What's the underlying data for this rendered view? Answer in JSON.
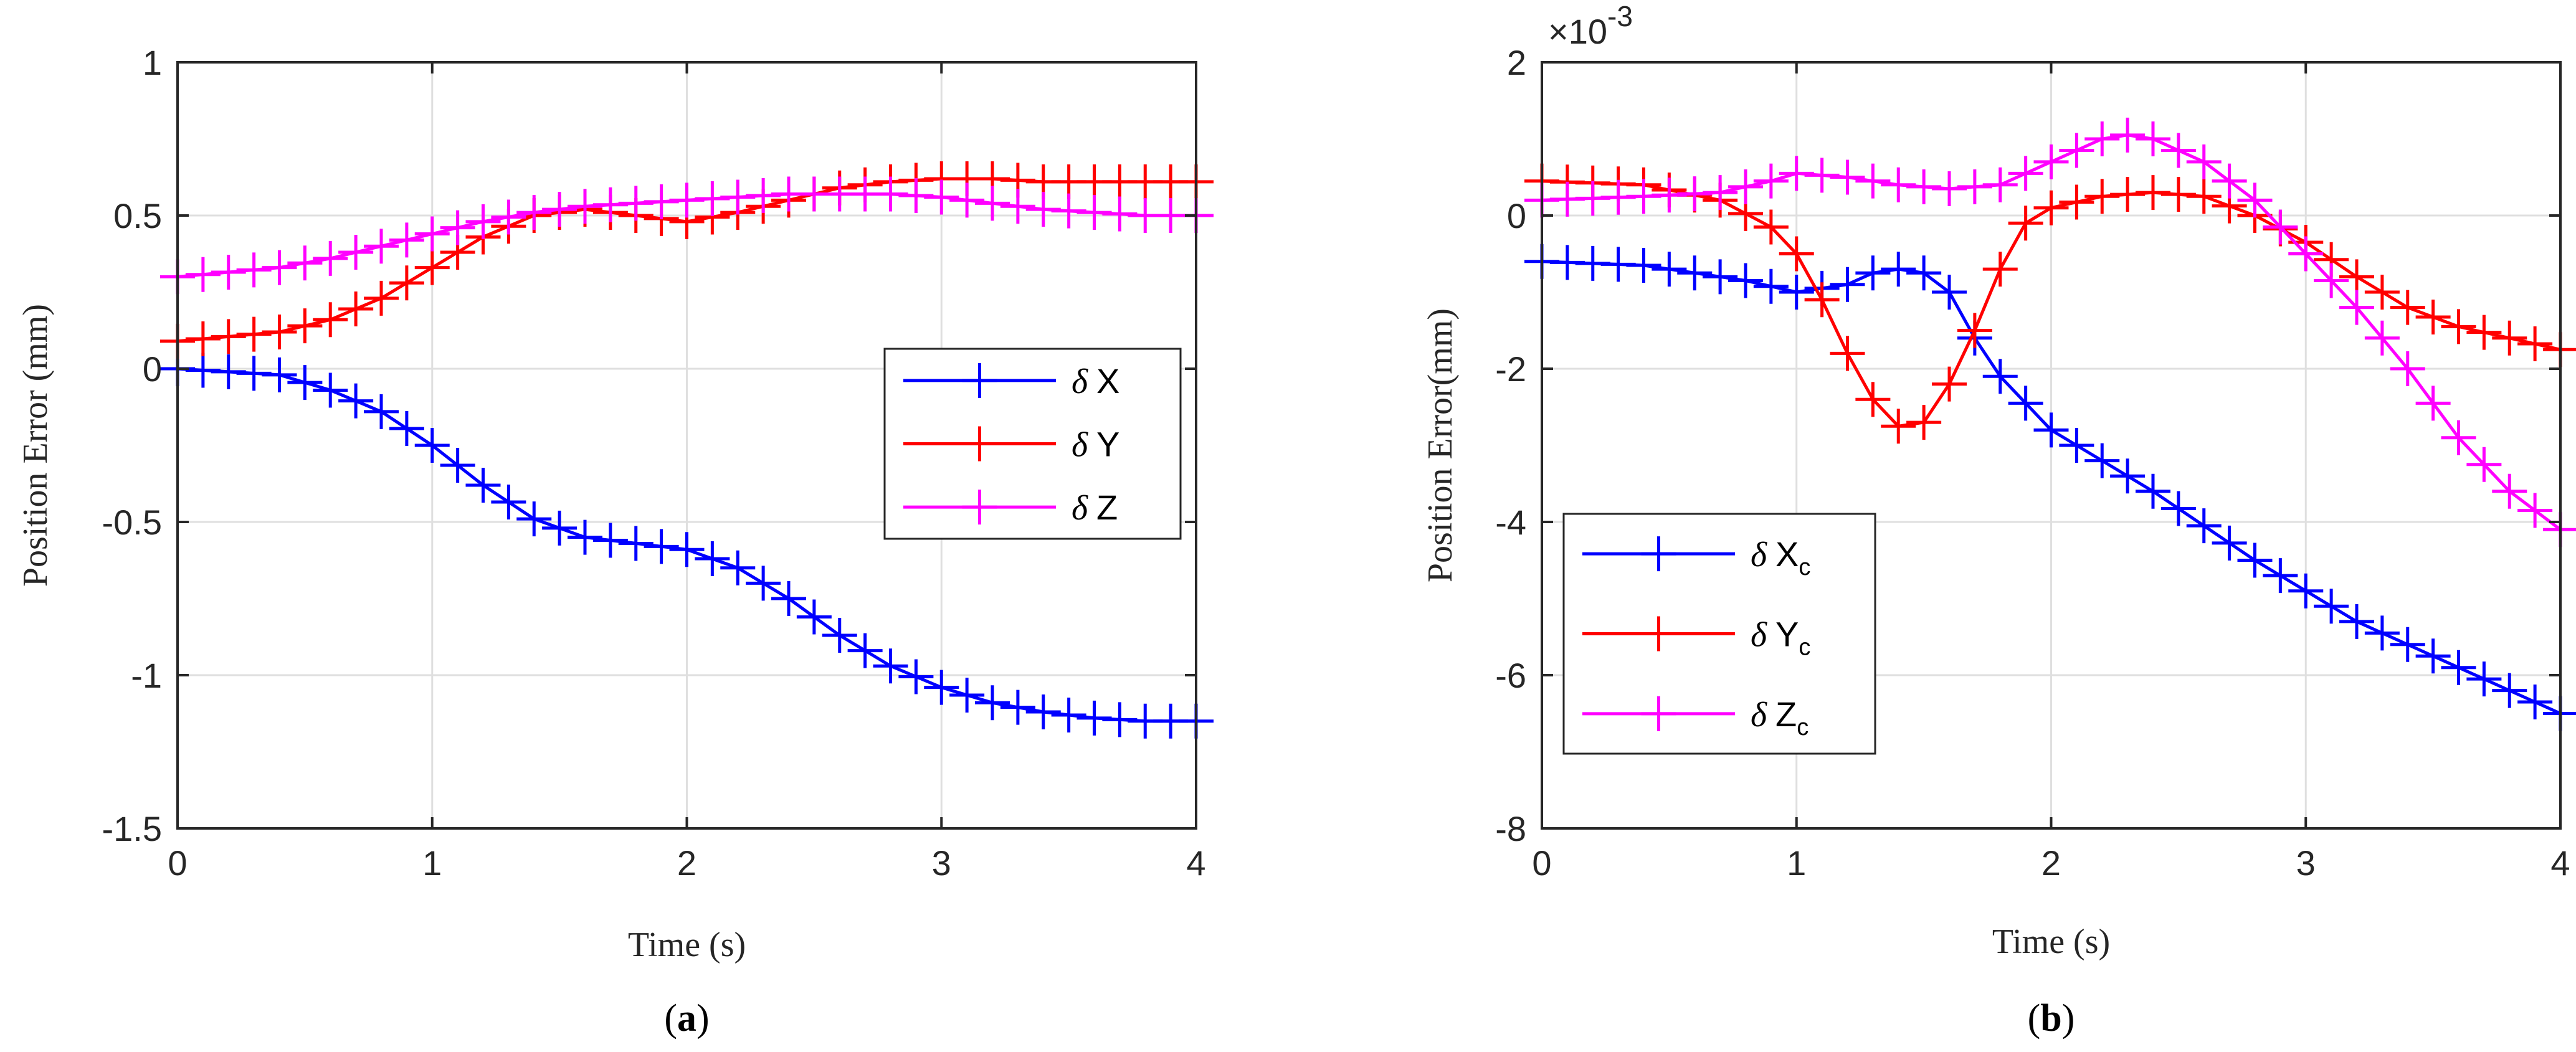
{
  "chart_data": [
    {
      "id": "a",
      "type": "line",
      "panel_label": {
        "open": "(",
        "letter": "a",
        "close": ")"
      },
      "xlabel": "Time (s)",
      "ylabel": "Position Error (mm)",
      "xlim": [
        0,
        4
      ],
      "ylim": [
        -1.5,
        1
      ],
      "xticks": [
        "0",
        "1",
        "2",
        "3",
        "4"
      ],
      "yticks": [
        "1",
        "0.5",
        "0",
        "-0.5",
        "-1",
        "-1.5"
      ],
      "exponent": "",
      "grid": true,
      "legend_position": "right-middle",
      "series": [
        {
          "name": "δ X",
          "label_delta": "δ",
          "label_main": "X",
          "label_sub": "",
          "color": "#0000ff",
          "x": [
            0,
            0.4,
            0.6,
            0.8,
            1.0,
            1.2,
            1.4,
            1.6,
            1.8,
            2.0,
            2.2,
            2.4,
            2.6,
            2.8,
            3.0,
            3.2,
            3.4,
            3.6,
            3.8,
            4.0
          ],
          "y": [
            0.0,
            -0.02,
            -0.07,
            -0.14,
            -0.25,
            -0.38,
            -0.49,
            -0.55,
            -0.57,
            -0.59,
            -0.65,
            -0.75,
            -0.87,
            -0.97,
            -1.04,
            -1.09,
            -1.12,
            -1.14,
            -1.15,
            -1.15
          ]
        },
        {
          "name": "δ Y",
          "label_delta": "δ",
          "label_main": "Y",
          "label_sub": "",
          "color": "#ff0000",
          "x": [
            0,
            0.4,
            0.6,
            0.8,
            1.0,
            1.2,
            1.4,
            1.6,
            1.8,
            2.0,
            2.2,
            2.4,
            2.6,
            2.8,
            3.0,
            3.2,
            3.4,
            3.6,
            3.8,
            4.0
          ],
          "y": [
            0.09,
            0.12,
            0.16,
            0.23,
            0.33,
            0.43,
            0.5,
            0.52,
            0.5,
            0.48,
            0.51,
            0.55,
            0.59,
            0.61,
            0.62,
            0.62,
            0.61,
            0.61,
            0.61,
            0.61
          ]
        },
        {
          "name": "δ Z",
          "label_delta": "δ",
          "label_main": "Z",
          "label_sub": "",
          "color": "#ff00ff",
          "x": [
            0,
            0.4,
            0.6,
            0.8,
            1.0,
            1.2,
            1.4,
            1.6,
            1.8,
            2.0,
            2.2,
            2.4,
            2.6,
            2.8,
            3.0,
            3.2,
            3.4,
            3.6,
            3.8,
            4.0
          ],
          "y": [
            0.3,
            0.33,
            0.36,
            0.4,
            0.44,
            0.48,
            0.51,
            0.53,
            0.54,
            0.55,
            0.56,
            0.57,
            0.57,
            0.57,
            0.56,
            0.54,
            0.52,
            0.51,
            0.5,
            0.5
          ]
        }
      ]
    },
    {
      "id": "b",
      "type": "line",
      "panel_label": {
        "open": "(",
        "letter": "b",
        "close": ")"
      },
      "xlabel": "Time (s)",
      "ylabel": "Position Error(mm)",
      "xlim": [
        0,
        4
      ],
      "ylim": [
        -8,
        2
      ],
      "xticks": [
        "0",
        "1",
        "2",
        "3",
        "4"
      ],
      "yticks": [
        "2",
        "0",
        "-2",
        "-4",
        "-6",
        "-8"
      ],
      "exponent": {
        "base": "×10",
        "power": "-3"
      },
      "grid": true,
      "legend_position": "bottom-left",
      "series": [
        {
          "name": "δ Xc",
          "label_delta": "δ",
          "label_main": "X",
          "label_sub": "c",
          "color": "#0000ff",
          "x": [
            0,
            0.4,
            0.8,
            1.0,
            1.2,
            1.3,
            1.4,
            1.5,
            1.6,
            1.7,
            1.8,
            2.0,
            2.4,
            2.8,
            3.2,
            3.6,
            4.0
          ],
          "y": [
            -0.6,
            -0.65,
            -0.85,
            -1.0,
            -0.9,
            -0.75,
            -0.7,
            -0.75,
            -1.0,
            -1.6,
            -2.1,
            -2.8,
            -3.6,
            -4.5,
            -5.3,
            -5.9,
            -6.5
          ]
        },
        {
          "name": "δ Yc",
          "label_delta": "δ",
          "label_main": "Y",
          "label_sub": "c",
          "color": "#ff0000",
          "x": [
            0,
            0.4,
            0.7,
            0.9,
            1.0,
            1.1,
            1.2,
            1.3,
            1.4,
            1.5,
            1.6,
            1.7,
            1.8,
            1.9,
            2.0,
            2.2,
            2.4,
            2.6,
            2.8,
            3.0,
            3.2,
            3.4,
            3.6,
            3.8,
            4.0
          ],
          "y": [
            0.45,
            0.4,
            0.2,
            -0.15,
            -0.5,
            -1.1,
            -1.8,
            -2.4,
            -2.75,
            -2.7,
            -2.2,
            -1.5,
            -0.7,
            -0.1,
            0.1,
            0.25,
            0.3,
            0.25,
            0.0,
            -0.35,
            -0.8,
            -1.2,
            -1.45,
            -1.6,
            -1.75
          ]
        },
        {
          "name": "δ Zc",
          "label_delta": "δ",
          "label_main": "Z",
          "label_sub": "c",
          "color": "#ff00ff",
          "x": [
            0,
            0.4,
            0.7,
            0.9,
            1.0,
            1.2,
            1.4,
            1.6,
            1.8,
            2.0,
            2.2,
            2.3,
            2.4,
            2.6,
            2.8,
            3.0,
            3.2,
            3.4,
            3.6,
            3.8,
            4.0
          ],
          "y": [
            0.2,
            0.25,
            0.3,
            0.45,
            0.55,
            0.5,
            0.4,
            0.35,
            0.4,
            0.7,
            1.0,
            1.05,
            1.0,
            0.7,
            0.2,
            -0.5,
            -1.2,
            -2.0,
            -2.9,
            -3.6,
            -4.1
          ]
        }
      ]
    }
  ]
}
